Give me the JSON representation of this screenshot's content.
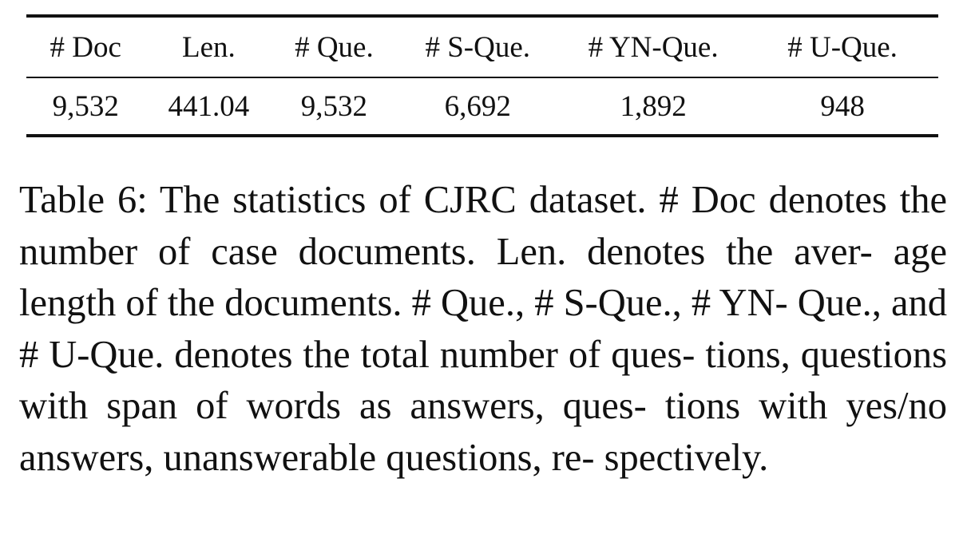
{
  "table": {
    "headers": [
      "# Doc",
      "Len.",
      "# Que.",
      "# S-Que.",
      "# YN-Que.",
      "# U-Que."
    ],
    "rows": [
      [
        "9,532",
        "441.04",
        "9,532",
        "6,692",
        "1,892",
        "948"
      ]
    ]
  },
  "caption": {
    "lines": [
      "Table 6: The statistics of CJRC dataset. # Doc denotes",
      "the number of case documents. Len. denotes the aver-",
      "age length of the documents. # Que., # S-Que., # YN-",
      "Que., and # U-Que. denotes the total number of ques-",
      "tions, questions with span of words as answers, ques-",
      "tions with yes/no answers, unanswerable questions, re-",
      "spectively."
    ]
  }
}
